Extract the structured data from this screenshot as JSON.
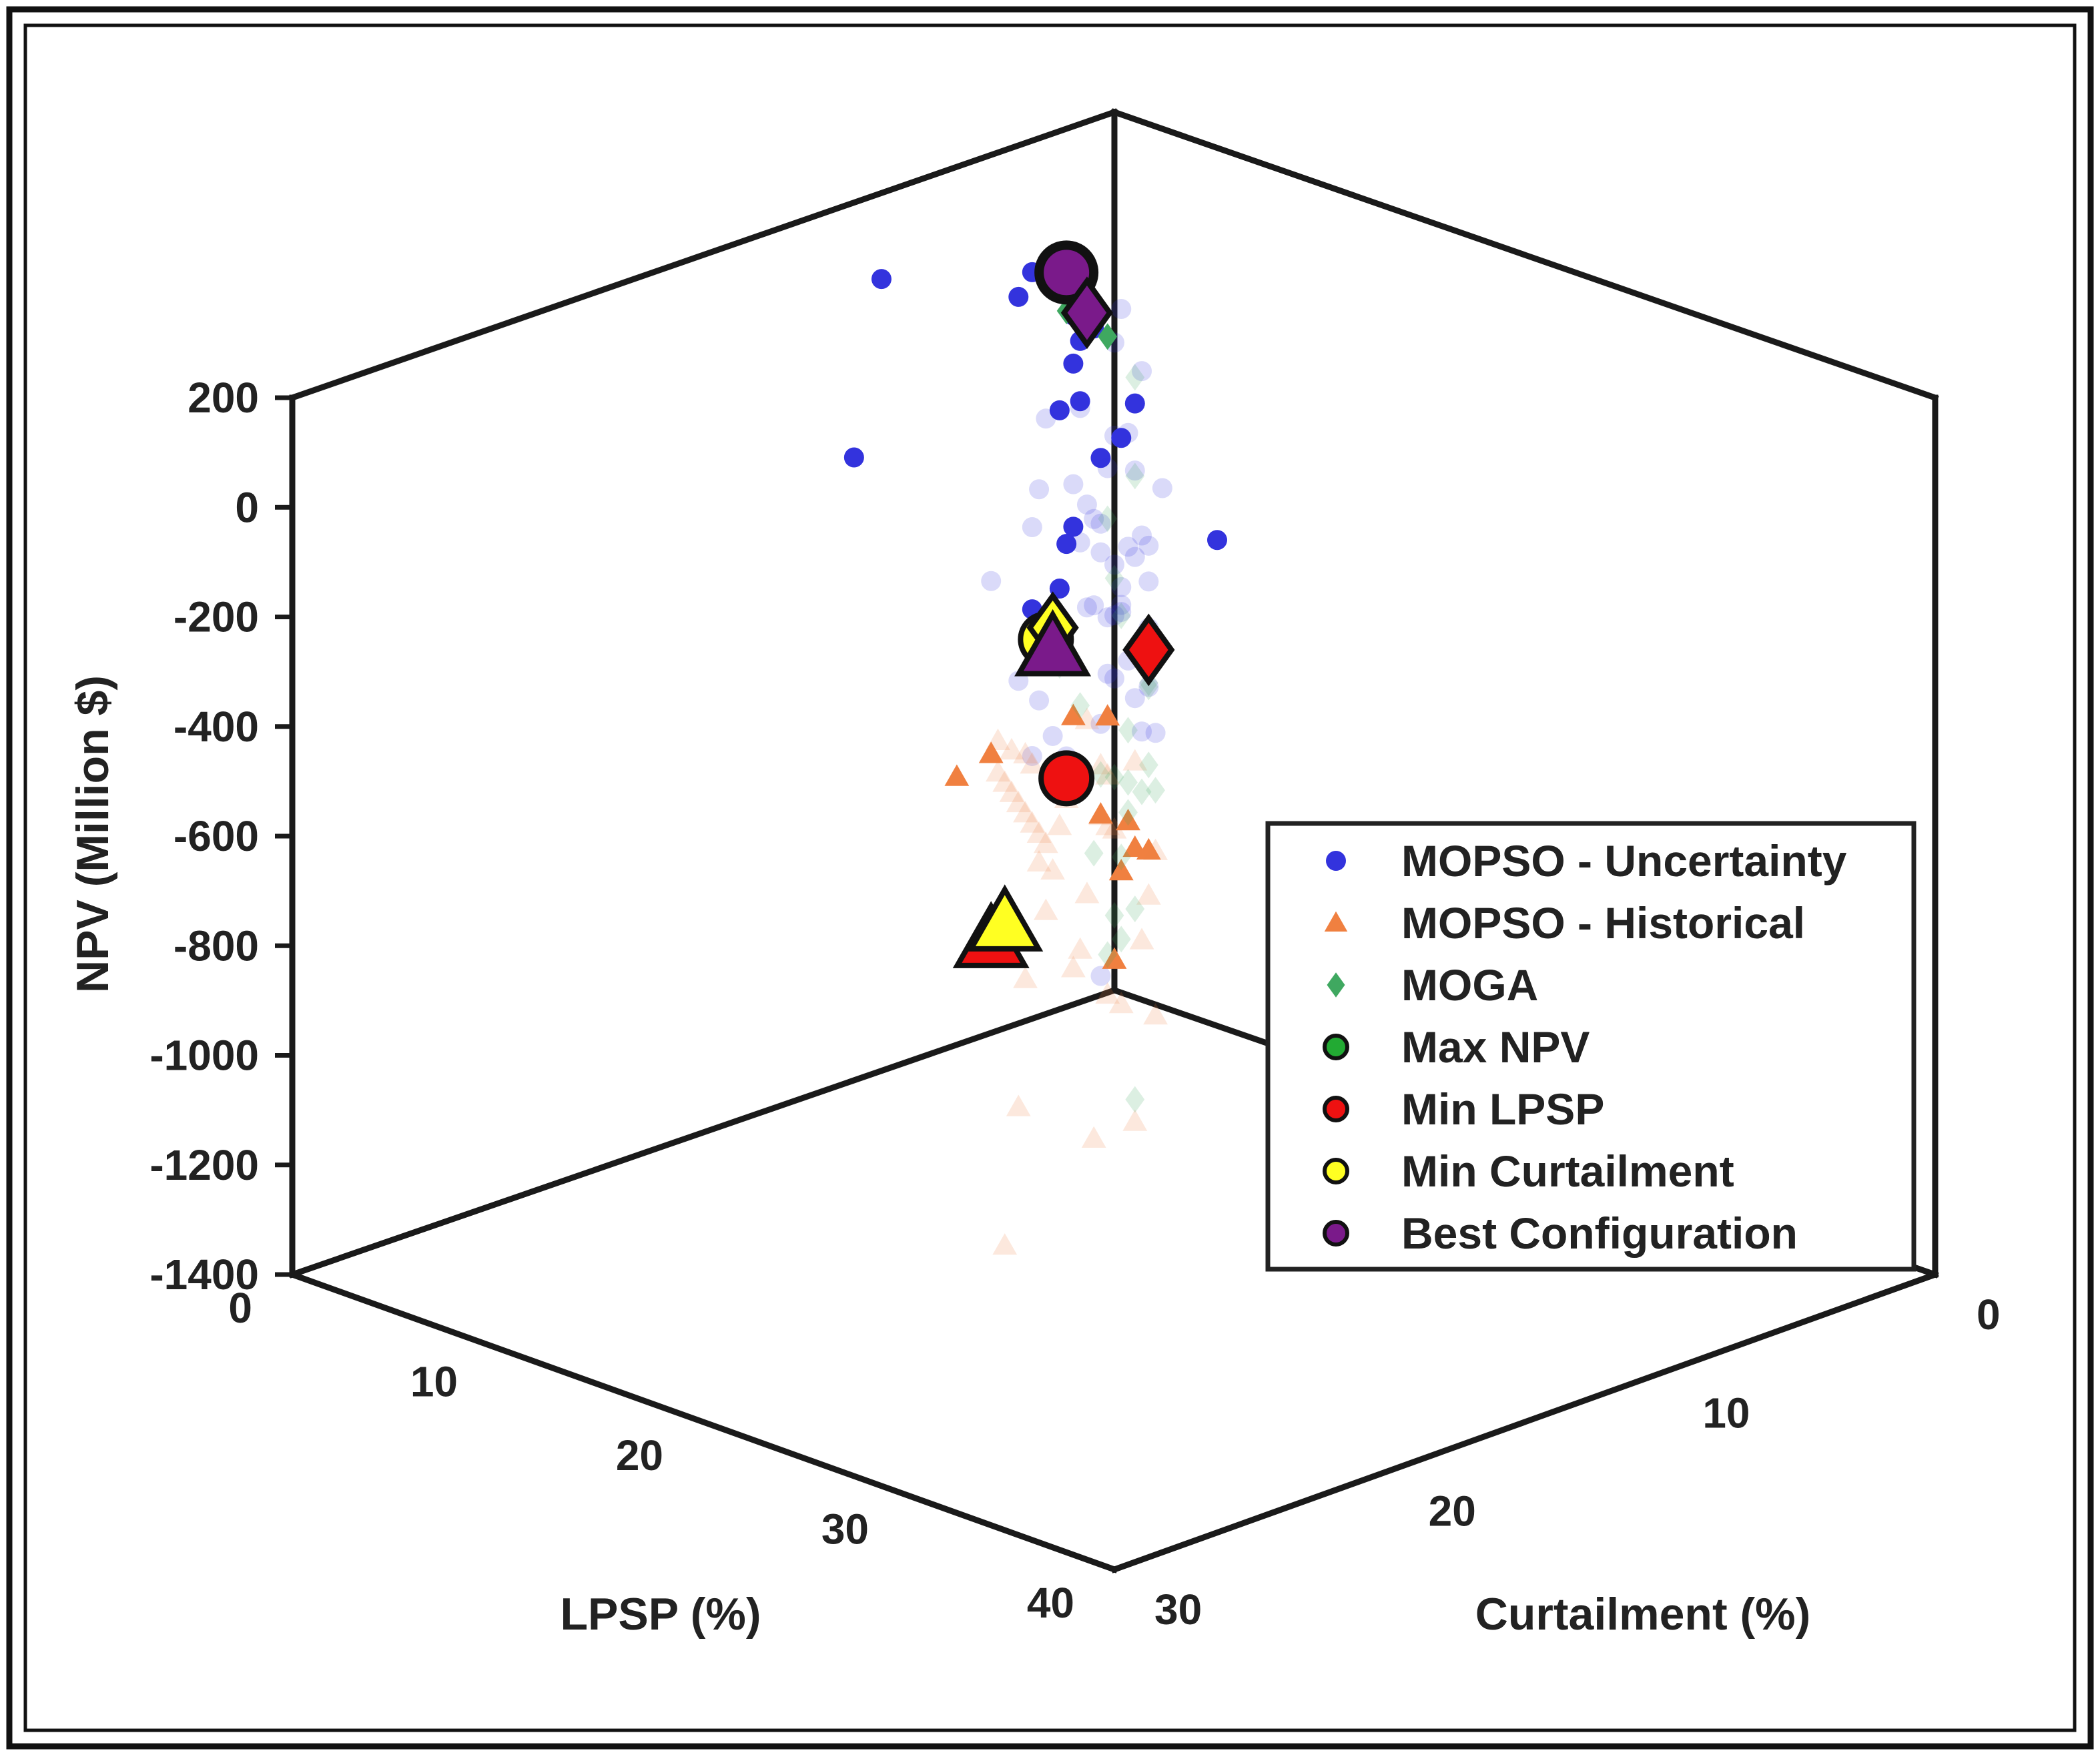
{
  "chart_data": {
    "type": "scatter3d",
    "title": "",
    "xlabel": "LPSP (%)",
    "ylabel": "Curtailment (%)",
    "zlabel": "NPV (Million $)",
    "xlim": [
      0,
      40
    ],
    "ylim": [
      0,
      30
    ],
    "zlim": [
      -1400,
      200
    ],
    "x_ticks": [
      "0",
      "10",
      "20",
      "30",
      "40"
    ],
    "y_ticks": [
      "0",
      "10",
      "20",
      "30"
    ],
    "z_ticks": [
      "200",
      "0",
      "-200",
      "-400",
      "-600",
      "-800",
      "-1000",
      "-1200",
      "-1400"
    ],
    "legend_position": "right",
    "legend": [
      {
        "label": "MOPSO - Uncertainty",
        "marker": "circle",
        "color": "#3333dd"
      },
      {
        "label": "MOPSO - Historical",
        "marker": "triangle",
        "color": "#f08040"
      },
      {
        "label": "MOGA",
        "marker": "diamond",
        "color": "#3fa860"
      },
      {
        "label": "Max NPV",
        "marker": "circle-outline",
        "color": "#22aa33"
      },
      {
        "label": "Min LPSP",
        "marker": "circle-outline",
        "color": "#ee1111"
      },
      {
        "label": "Min Curtailment",
        "marker": "circle-outline",
        "color": "#ffff22"
      },
      {
        "label": "Best Configuration",
        "marker": "circle-outline",
        "color": "#7a1a8a"
      }
    ],
    "series": [
      {
        "name": "MOPSO - Uncertainty",
        "marker": "circle",
        "color": "#3333dd",
        "points": [
          [
            6,
            8,
            70
          ],
          [
            9,
            8,
            30
          ],
          [
            8,
            9,
            160
          ],
          [
            10,
            16,
            300
          ],
          [
            14,
            20,
            100
          ],
          [
            10,
            9,
            20
          ],
          [
            6,
            6,
            0
          ],
          [
            7,
            6,
            -10
          ],
          [
            9,
            8,
            -80
          ],
          [
            9,
            6,
            -120
          ],
          [
            8,
            8,
            -110
          ],
          [
            10,
            8,
            -170
          ],
          [
            11,
            8,
            -120
          ],
          [
            14,
            12,
            -170
          ],
          [
            15,
            13,
            -170
          ],
          [
            16,
            14,
            -220
          ],
          [
            16,
            15,
            -240
          ],
          [
            17,
            15,
            -270
          ],
          [
            18,
            16,
            -270
          ],
          [
            18,
            16,
            -290
          ],
          [
            21,
            12,
            -100
          ]
        ]
      },
      {
        "name": "MOPSO - Uncertainty (faded)",
        "marker": "circle",
        "color": "#3333dd",
        "faded": true,
        "points": [
          [
            3,
            2,
            -100
          ],
          [
            4,
            2,
            -200
          ],
          [
            4,
            3,
            -300
          ],
          [
            5,
            3,
            -350
          ],
          [
            5,
            2,
            -400
          ],
          [
            4,
            2,
            -500
          ],
          [
            3,
            1,
            -550
          ],
          [
            3,
            2,
            -640
          ],
          [
            3,
            1,
            -700
          ],
          [
            5,
            4,
            -600
          ],
          [
            7,
            5,
            -500
          ],
          [
            7,
            4,
            -700
          ],
          [
            8,
            5,
            -750
          ],
          [
            6,
            5,
            -450
          ],
          [
            8,
            7,
            -300
          ],
          [
            9,
            6,
            -400
          ],
          [
            10,
            7,
            -350
          ],
          [
            11,
            7,
            -400
          ],
          [
            12,
            8,
            -500
          ],
          [
            13,
            9,
            -550
          ],
          [
            14,
            10,
            -450
          ],
          [
            12,
            9,
            -320
          ],
          [
            13,
            11,
            -230
          ],
          [
            15,
            11,
            -330
          ],
          [
            16,
            12,
            -420
          ],
          [
            17,
            13,
            -380
          ],
          [
            18,
            14,
            -440
          ],
          [
            19,
            16,
            -450
          ],
          [
            20,
            18,
            -400
          ],
          [
            21,
            18,
            -350
          ],
          [
            22,
            20,
            -200
          ],
          [
            22,
            21,
            0
          ],
          [
            16,
            15,
            -90
          ],
          [
            11,
            9,
            -250
          ],
          [
            10,
            8,
            -290
          ],
          [
            12,
            10,
            -380
          ],
          [
            14,
            9,
            -600
          ],
          [
            18,
            14,
            -900
          ],
          [
            8,
            6,
            -520
          ],
          [
            6,
            4,
            -250
          ],
          [
            5,
            5,
            -200
          ],
          [
            6,
            7,
            -170
          ],
          [
            4,
            3,
            -130
          ],
          [
            9,
            7,
            -220
          ],
          [
            10,
            9,
            -200
          ],
          [
            11,
            11,
            -160
          ],
          [
            15,
            12,
            -300
          ],
          [
            19,
            17,
            -330
          ]
        ]
      },
      {
        "name": "MOPSO - Historical",
        "marker": "triangle",
        "color": "#f08040",
        "points": [
          [
            21,
            16,
            -350
          ],
          [
            22,
            18,
            -300
          ],
          [
            26,
            20,
            -390
          ],
          [
            26,
            19,
            -420
          ],
          [
            27,
            19,
            -460
          ],
          [
            27,
            20,
            -480
          ],
          [
            25,
            18,
            -500
          ],
          [
            28,
            21,
            -610
          ],
          [
            30,
            27,
            -100
          ],
          [
            27,
            26,
            -200
          ]
        ]
      },
      {
        "name": "MOPSO - Historical (faded)",
        "marker": "triangle",
        "color": "#f08040",
        "faded": true,
        "points": [
          [
            20,
            16,
            -370
          ],
          [
            21,
            15,
            -450
          ],
          [
            22,
            17,
            -500
          ],
          [
            21,
            16,
            -550
          ],
          [
            22,
            15,
            -600
          ],
          [
            23,
            16,
            -650
          ],
          [
            24,
            17,
            -700
          ],
          [
            25,
            19,
            -750
          ],
          [
            23,
            17,
            -830
          ],
          [
            22,
            15,
            -900
          ],
          [
            25,
            18,
            -1000
          ],
          [
            27,
            21,
            -950
          ],
          [
            24,
            18,
            -480
          ],
          [
            25,
            19,
            -350
          ],
          [
            26,
            20,
            -300
          ],
          [
            27,
            22,
            -250
          ],
          [
            28,
            23,
            -330
          ],
          [
            29,
            24,
            -380
          ],
          [
            30,
            25,
            -300
          ],
          [
            31,
            26,
            -250
          ],
          [
            32,
            27,
            -200
          ],
          [
            33,
            28,
            -150
          ],
          [
            34,
            29,
            -100
          ],
          [
            35,
            30,
            -50
          ],
          [
            36,
            31,
            0
          ],
          [
            37,
            32,
            50
          ],
          [
            33,
            29,
            0
          ],
          [
            31,
            27,
            -80
          ],
          [
            29,
            25,
            -150
          ],
          [
            28,
            24,
            -200
          ],
          [
            27,
            23,
            -410
          ],
          [
            26,
            22,
            -530
          ],
          [
            29,
            25,
            -560
          ],
          [
            24,
            19,
            -580
          ],
          [
            23,
            19,
            -420
          ],
          [
            28,
            25,
            -1060
          ],
          [
            22,
            18,
            -760
          ],
          [
            25,
            20,
            -650
          ],
          [
            26,
            23,
            -870
          ]
        ]
      },
      {
        "name": "MOGA",
        "marker": "diamond",
        "color": "#3fa860",
        "points": [
          [
            9,
            7,
            20
          ],
          [
            7,
            7,
            40
          ]
        ]
      },
      {
        "name": "MOGA (faded)",
        "marker": "diamond",
        "color": "#3fa860",
        "faded": true,
        "points": [
          [
            5,
            3,
            -180
          ],
          [
            5,
            3,
            -360
          ],
          [
            5,
            4,
            -420
          ],
          [
            4,
            3,
            -560
          ],
          [
            3,
            2,
            -660
          ],
          [
            3,
            1,
            -800
          ],
          [
            2,
            1,
            -900
          ],
          [
            3,
            1,
            -950
          ],
          [
            2,
            1,
            -1050
          ],
          [
            3,
            2,
            -1100
          ],
          [
            3,
            2,
            -1250
          ],
          [
            5,
            3,
            -1150
          ],
          [
            9,
            6,
            -1390
          ],
          [
            10,
            7,
            -780
          ],
          [
            11,
            9,
            -860
          ],
          [
            12,
            9,
            -960
          ],
          [
            13,
            10,
            -1000
          ],
          [
            14,
            11,
            -640
          ],
          [
            16,
            12,
            -600
          ],
          [
            16,
            14,
            -360
          ],
          [
            17,
            14,
            -420
          ],
          [
            17,
            15,
            -300
          ],
          [
            7,
            4,
            -700
          ],
          [
            8,
            5,
            -860
          ],
          [
            6,
            3,
            -920
          ],
          [
            4,
            2,
            -700
          ]
        ]
      },
      {
        "name": "Max NPV",
        "marker": "circle-outline",
        "color": "#22aa33",
        "points": [
          [
            7,
            7,
            110
          ]
        ]
      },
      {
        "name": "Min LPSP",
        "marker": "highlight",
        "color": "#ee1111",
        "points": [
          {
            "shape": "circle",
            "x": 19,
            "y": 16,
            "z": -490
          },
          {
            "shape": "triangle",
            "x": 30,
            "y": 27,
            "z": -440
          },
          {
            "shape": "diamond",
            "x": 3,
            "y": 1,
            "z": -740
          }
        ]
      },
      {
        "name": "Min Curtailment",
        "marker": "highlight",
        "color": "#ffff22",
        "points": [
          {
            "shape": "circle",
            "x": 18,
            "y": 16,
            "z": -250
          },
          {
            "shape": "triangle",
            "x": 24,
            "y": 22,
            "z": -580
          },
          {
            "shape": "diamond",
            "x": 17,
            "y": 15,
            "z": -260
          }
        ]
      },
      {
        "name": "Best Configuration",
        "marker": "highlight",
        "color": "#7a1a8a",
        "points": [
          {
            "shape": "circle",
            "x": 7,
            "y": 7,
            "z": 110
          },
          {
            "shape": "triangle",
            "x": 21,
            "y": 18,
            "z": -190
          },
          {
            "shape": "diamond",
            "x": 8,
            "y": 7,
            "z": 50
          }
        ]
      }
    ]
  }
}
